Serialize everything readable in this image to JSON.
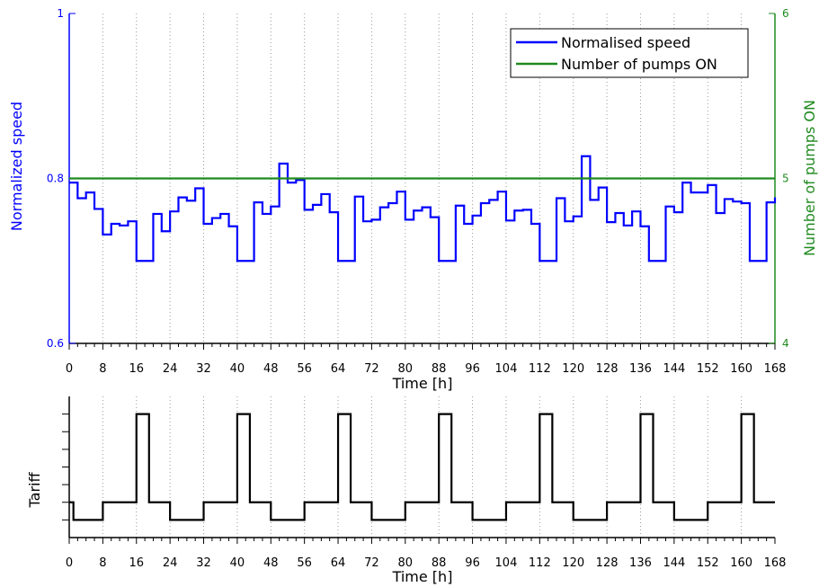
{
  "chart_data": [
    {
      "type": "line",
      "xlabel": "Time [h]",
      "ylabel": "Normalized speed",
      "ylabel_right": "Number of pumps ON",
      "xlim": [
        0,
        168
      ],
      "ylim": [
        0.6,
        1.0
      ],
      "ylim_right": [
        4,
        6
      ],
      "x_ticks": [
        "0",
        "8",
        "16",
        "24",
        "32",
        "40",
        "48",
        "56",
        "64",
        "72",
        "80",
        "88",
        "96",
        "104",
        "112",
        "120",
        "128",
        "136",
        "144",
        "152",
        "160",
        "168"
      ],
      "y_ticks": [
        "0.6",
        "0.8",
        "1"
      ],
      "y_ticks_right": [
        "4",
        "5",
        "6"
      ],
      "grid": "vertical dotted",
      "legend_position": "top-right",
      "series": [
        {
          "name": "Normalised speed",
          "color": "#0000ff",
          "axis": "left",
          "step": "post",
          "x": [
            0,
            2,
            4,
            6,
            8,
            10,
            12,
            14,
            16,
            18,
            20,
            22,
            24,
            26,
            28,
            30,
            32,
            34,
            36,
            38,
            40,
            42,
            44,
            46,
            48,
            50,
            52,
            54,
            56,
            58,
            60,
            62,
            64,
            66,
            68,
            70,
            72,
            74,
            76,
            78,
            80,
            82,
            84,
            86,
            88,
            90,
            92,
            94,
            96,
            98,
            100,
            102,
            104,
            106,
            108,
            110,
            112,
            114,
            116,
            118,
            120,
            122,
            124,
            126,
            128,
            130,
            132,
            134,
            136,
            138,
            140,
            142,
            144,
            146,
            148,
            150,
            152,
            154,
            156,
            158,
            160,
            162,
            164,
            166,
            168
          ],
          "values": [
            0.795,
            0.776,
            0.783,
            0.763,
            0.732,
            0.745,
            0.743,
            0.748,
            0.7,
            0.7,
            0.757,
            0.736,
            0.76,
            0.777,
            0.773,
            0.788,
            0.745,
            0.752,
            0.757,
            0.742,
            0.7,
            0.7,
            0.771,
            0.757,
            0.766,
            0.818,
            0.795,
            0.798,
            0.762,
            0.768,
            0.781,
            0.759,
            0.7,
            0.7,
            0.778,
            0.748,
            0.75,
            0.765,
            0.77,
            0.784,
            0.75,
            0.761,
            0.765,
            0.753,
            0.7,
            0.7,
            0.767,
            0.745,
            0.755,
            0.77,
            0.774,
            0.784,
            0.749,
            0.761,
            0.762,
            0.745,
            0.7,
            0.7,
            0.776,
            0.748,
            0.754,
            0.827,
            0.774,
            0.789,
            0.747,
            0.758,
            0.743,
            0.76,
            0.742,
            0.7,
            0.7,
            0.766,
            0.759,
            0.795,
            0.783,
            0.783,
            0.792,
            0.758,
            0.775,
            0.772,
            0.77,
            0.7,
            0.7,
            0.771,
            0.777
          ]
        },
        {
          "name": "Number of pumps ON",
          "color": "#1f8a1f",
          "axis": "right",
          "x": [
            0,
            168
          ],
          "values": [
            5,
            5
          ]
        }
      ]
    },
    {
      "type": "line",
      "xlabel": "Time [h]",
      "ylabel": "Tariff",
      "xlim": [
        0,
        168
      ],
      "ylim": [
        0,
        8
      ],
      "x_ticks": [
        "0",
        "8",
        "16",
        "24",
        "32",
        "40",
        "48",
        "56",
        "64",
        "72",
        "80",
        "88",
        "96",
        "104",
        "112",
        "120",
        "128",
        "136",
        "144",
        "152",
        "160",
        "168"
      ],
      "y_ticks": [],
      "grid": "vertical dotted",
      "series": [
        {
          "color": "#000000",
          "step": "post",
          "x": [
            0,
            1,
            8,
            16,
            19,
            20,
            24,
            32,
            40,
            43,
            44,
            48,
            56,
            64,
            67,
            68,
            72,
            80,
            88,
            91,
            92,
            96,
            104,
            112,
            115,
            116,
            120,
            128,
            136,
            139,
            140,
            144,
            152,
            160,
            163,
            164,
            168
          ],
          "values": [
            2,
            1,
            2,
            7,
            2,
            2,
            1,
            2,
            7,
            2,
            2,
            1,
            2,
            7,
            2,
            2,
            1,
            2,
            7,
            2,
            2,
            1,
            2,
            7,
            2,
            2,
            1,
            2,
            7,
            2,
            2,
            1,
            2,
            7,
            2,
            2,
            2
          ]
        }
      ]
    }
  ]
}
